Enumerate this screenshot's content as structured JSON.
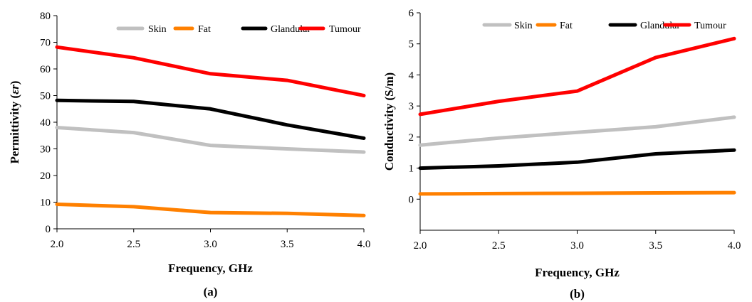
{
  "chart_data": [
    {
      "type": "line",
      "panel_label": "(a)",
      "xlabel": "Frequency, GHz",
      "ylabel_text": "Permittivity (",
      "ylabel_symbol": "εr",
      "ylabel_close": ")",
      "xlim": [
        2.0,
        4.0
      ],
      "ylim": [
        0,
        80
      ],
      "xticks": [
        "2.0",
        "2.5",
        "3.0",
        "3.5",
        "4.0"
      ],
      "xtick_values": [
        2.0,
        2.5,
        3.0,
        3.5,
        4.0
      ],
      "yticks": [
        "0",
        "10",
        "20",
        "30",
        "40",
        "50",
        "60",
        "70",
        "80"
      ],
      "ytick_values": [
        0,
        10,
        20,
        30,
        40,
        50,
        60,
        70,
        80
      ],
      "legend": "top-right",
      "grid": false,
      "series": [
        {
          "name": "Skin",
          "color": "#c0c0c0",
          "x": [
            2.0,
            2.5,
            3.0,
            3.5,
            4.0
          ],
          "values": [
            38.0,
            36.1,
            31.3,
            30.0,
            28.8
          ]
        },
        {
          "name": "Fat",
          "color": "#ff8000",
          "x": [
            2.0,
            2.5,
            3.0,
            3.5,
            4.0
          ],
          "values": [
            9.2,
            8.3,
            6.1,
            5.8,
            5.0
          ]
        },
        {
          "name": "Glandular",
          "color": "#000000",
          "x": [
            2.0,
            2.5,
            3.0,
            3.5,
            4.0
          ],
          "values": [
            48.2,
            47.8,
            45.0,
            39.0,
            34.0
          ]
        },
        {
          "name": "Tumour",
          "color": "#ff0000",
          "x": [
            2.0,
            2.5,
            3.0,
            3.5,
            4.0
          ],
          "values": [
            68.2,
            64.2,
            58.2,
            55.7,
            50.0
          ]
        }
      ]
    },
    {
      "type": "line",
      "panel_label": "(b)",
      "xlabel": "Frequency, GHz",
      "ylabel_text": "Conductivity (S/m)",
      "ylabel_symbol": "",
      "ylabel_close": "",
      "xlim": [
        2.0,
        4.0
      ],
      "ylim": [
        -1,
        6
      ],
      "xticks": [
        "2.0",
        "2.5",
        "3.0",
        "3.5",
        "4.0"
      ],
      "xtick_values": [
        2.0,
        2.5,
        3.0,
        3.5,
        4.0
      ],
      "yticks": [
        "0",
        "1",
        "2",
        "3",
        "4",
        "5",
        "6"
      ],
      "ytick_values": [
        0,
        1,
        2,
        3,
        4,
        5,
        6
      ],
      "legend": "top-right",
      "grid": false,
      "series": [
        {
          "name": "Skin",
          "color": "#c0c0c0",
          "x": [
            2.0,
            2.5,
            3.0,
            3.5,
            4.0
          ],
          "values": [
            1.74,
            1.97,
            2.15,
            2.33,
            2.64
          ]
        },
        {
          "name": "Fat",
          "color": "#ff8000",
          "x": [
            2.0,
            2.5,
            3.0,
            3.5,
            4.0
          ],
          "values": [
            0.17,
            0.18,
            0.19,
            0.2,
            0.21
          ]
        },
        {
          "name": "Glandular",
          "color": "#000000",
          "x": [
            2.0,
            2.5,
            3.0,
            3.5,
            4.0
          ],
          "values": [
            1.0,
            1.07,
            1.19,
            1.46,
            1.58
          ]
        },
        {
          "name": "Tumour",
          "color": "#ff0000",
          "x": [
            2.0,
            2.5,
            3.0,
            3.5,
            4.0
          ],
          "values": [
            2.73,
            3.15,
            3.48,
            4.56,
            5.17
          ]
        }
      ]
    }
  ]
}
